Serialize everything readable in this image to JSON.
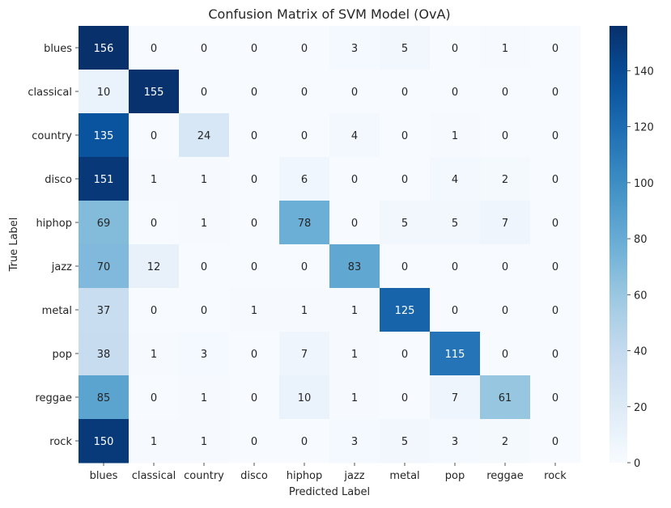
{
  "chart_data": {
    "type": "heatmap",
    "title": "Confusion Matrix of SVM Model (OvA)",
    "xlabel": "Predicted Label",
    "ylabel": "True Label",
    "x_categories": [
      "blues",
      "classical",
      "country",
      "disco",
      "hiphop",
      "jazz",
      "metal",
      "pop",
      "reggae",
      "rock"
    ],
    "y_categories": [
      "blues",
      "classical",
      "country",
      "disco",
      "hiphop",
      "jazz",
      "metal",
      "pop",
      "reggae",
      "rock"
    ],
    "values": [
      [
        156,
        0,
        0,
        0,
        0,
        3,
        5,
        0,
        1,
        0
      ],
      [
        10,
        155,
        0,
        0,
        0,
        0,
        0,
        0,
        0,
        0
      ],
      [
        135,
        0,
        24,
        0,
        0,
        4,
        0,
        1,
        0,
        0
      ],
      [
        151,
        1,
        1,
        0,
        6,
        0,
        0,
        4,
        2,
        0
      ],
      [
        69,
        0,
        1,
        0,
        78,
        0,
        5,
        5,
        7,
        0
      ],
      [
        70,
        12,
        0,
        0,
        0,
        83,
        0,
        0,
        0,
        0
      ],
      [
        37,
        0,
        0,
        1,
        1,
        1,
        125,
        0,
        0,
        0
      ],
      [
        38,
        1,
        3,
        0,
        7,
        1,
        0,
        115,
        0,
        0
      ],
      [
        85,
        0,
        1,
        0,
        10,
        1,
        0,
        7,
        61,
        0
      ],
      [
        150,
        1,
        1,
        0,
        0,
        3,
        5,
        3,
        2,
        0
      ]
    ],
    "colormap": "Blues",
    "vmin": 0,
    "vmax": 156,
    "colorbar_ticks": [
      0,
      20,
      40,
      60,
      80,
      100,
      120,
      140
    ],
    "annotations": true,
    "grid": false
  }
}
